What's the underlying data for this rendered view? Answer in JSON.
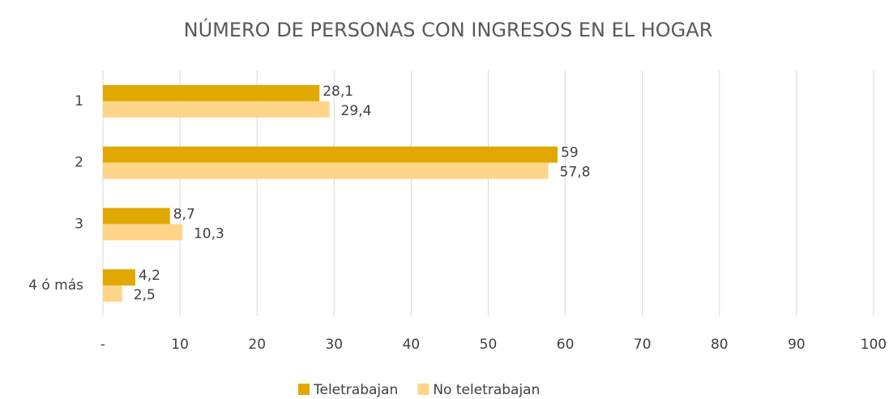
{
  "chart_data": {
    "type": "hbar",
    "title": "NÚMERO DE PERSONAS CON INGRESOS EN EL HOGAR",
    "categories": [
      "1",
      "2",
      "3",
      "4 ó más"
    ],
    "series": [
      {
        "name": "Teletrabajan",
        "color": "#e0a800",
        "values": [
          28.1,
          59,
          8.7,
          4.2
        ],
        "value_labels": [
          "28,1",
          "59",
          "8,7",
          "4,2"
        ]
      },
      {
        "name": "No teletrabajan",
        "color": "#ffd58a",
        "values": [
          29.4,
          57.8,
          10.3,
          2.5
        ],
        "value_labels": [
          "29,4",
          "57,8",
          "10,3",
          "2,5"
        ]
      }
    ],
    "xlim": [
      0,
      100
    ],
    "xticks": [
      {
        "value": 0,
        "label": "-"
      },
      10,
      20,
      30,
      40,
      50,
      60,
      70,
      80,
      90,
      100
    ],
    "grid": true,
    "legend": "bottom"
  }
}
